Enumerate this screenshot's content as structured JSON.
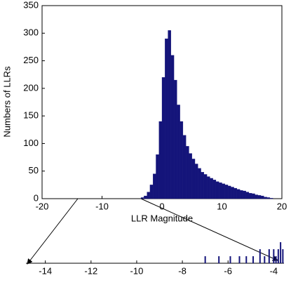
{
  "chart_data": [
    {
      "type": "histogram",
      "x_label": "LLR Magnitude",
      "y_label": "Numbers of LLRs",
      "color": "#14147a",
      "bins": [
        -4,
        -3.5,
        -3,
        -2.5,
        -2,
        -1.5,
        -1,
        -0.5,
        0,
        0.5,
        1,
        1.5,
        2,
        2.5,
        3,
        3.5,
        4,
        4.5,
        5,
        5.5,
        6,
        6.5,
        7,
        7.5,
        8,
        8.5,
        9,
        9.5,
        10,
        10.5,
        11,
        11.5,
        12,
        12.5,
        13,
        13.5,
        14,
        14.5,
        15,
        15.5,
        16,
        16.5,
        17,
        17.5,
        18,
        18.5,
        19
      ],
      "counts": [
        0,
        2,
        5,
        12,
        25,
        45,
        80,
        140,
        220,
        290,
        305,
        260,
        215,
        170,
        140,
        115,
        95,
        82,
        72,
        63,
        55,
        48,
        44,
        40,
        37,
        34,
        31,
        29,
        27,
        25,
        23,
        21,
        19,
        17,
        15,
        14,
        12,
        10,
        9,
        7,
        6,
        5,
        3,
        2,
        1,
        0
      ],
      "xlim": [
        -20,
        20
      ],
      "xticks": [
        -20,
        -10,
        0,
        10,
        20
      ],
      "ylim": [
        0,
        350
      ],
      "yticks": [
        0,
        50,
        100,
        150,
        200,
        250,
        300,
        350
      ]
    },
    {
      "type": "spikes",
      "color": "#14147a",
      "x": [
        -7,
        -6.4,
        -5.9,
        -5.5,
        -5.2,
        -4.9,
        -4.6,
        -4.4,
        -4.2,
        -4.0,
        -3.9,
        -3.8,
        -3.7,
        -3.6
      ],
      "values": [
        1,
        1,
        1,
        1,
        1,
        1,
        2,
        1,
        2,
        2,
        1,
        2,
        3,
        2
      ],
      "xlim": [
        -14.85,
        -3.55
      ],
      "xticks": [
        -14,
        -12,
        -10,
        -8,
        -6,
        -4
      ],
      "ylim": [
        0,
        4
      ]
    }
  ]
}
